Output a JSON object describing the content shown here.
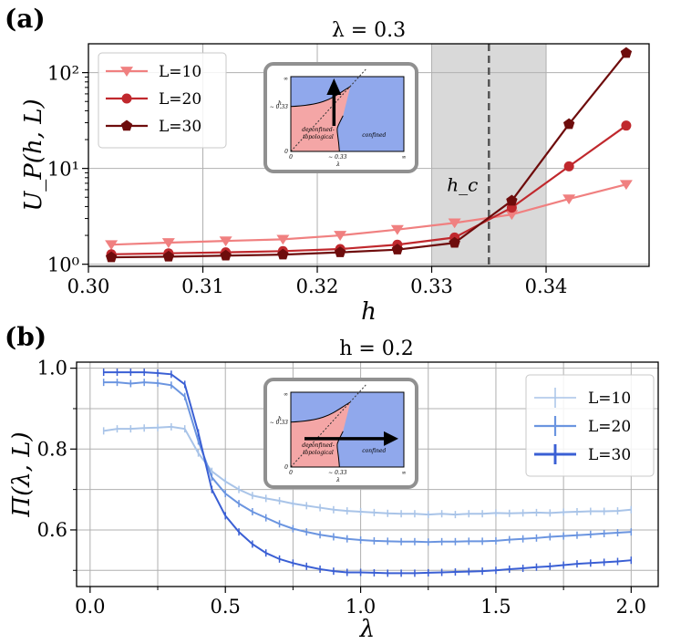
{
  "panel_labels": [
    "(a)",
    "(b)"
  ],
  "chart_data": [
    {
      "type": "line",
      "title": "λ = 0.3",
      "xlabel": "h",
      "ylabel": "U_P(h, L)",
      "x_ticks": [
        "0.30",
        "0.31",
        "0.32",
        "0.33",
        "0.34"
      ],
      "y_ticks": [
        "10⁰",
        "10¹",
        "10²"
      ],
      "xlim": [
        0.3,
        0.349
      ],
      "ylim": [
        0.95,
        200
      ],
      "yscale": "log",
      "grid": true,
      "legend": "top-left",
      "x": [
        0.302,
        0.307,
        0.312,
        0.317,
        0.322,
        0.327,
        0.332,
        0.337,
        0.342,
        0.347
      ],
      "series": [
        {
          "name": "L=10",
          "color": "#f08080",
          "marker": "triangle-down",
          "values": [
            1.6,
            1.68,
            1.75,
            1.82,
            2.0,
            2.3,
            2.7,
            3.3,
            4.8,
            6.8
          ]
        },
        {
          "name": "L=20",
          "color": "#c0282d",
          "marker": "circle",
          "values": [
            1.27,
            1.3,
            1.33,
            1.37,
            1.44,
            1.6,
            1.9,
            3.9,
            10.5,
            28
          ]
        },
        {
          "name": "L=30",
          "color": "#6e0c0c",
          "marker": "pentagon",
          "values": [
            1.18,
            1.2,
            1.23,
            1.26,
            1.33,
            1.42,
            1.67,
            4.6,
            29,
            160
          ]
        }
      ],
      "annotations": {
        "critical_label": "h_c",
        "h_c": 0.335,
        "shaded_region": [
          0.33,
          0.34
        ]
      },
      "inset": {
        "axis_y_label": "h",
        "axis_x_label": "λ",
        "y_tick": "∼ 0.33",
        "x_tick": "∼ 0.33",
        "top_tick": "∞",
        "right_tick": "∞",
        "left_zero": "0",
        "bottom_zero": "0",
        "region_left_1": "deconfined-",
        "region_left_2": "topological",
        "region_right": "confined",
        "color_left": "#f4a6a6",
        "color_right": "#90a8ec"
      }
    },
    {
      "type": "line",
      "title": "h = 0.2",
      "xlabel": "λ",
      "ylabel": "Π(λ, L)",
      "x_ticks": [
        "0.0",
        "0.5",
        "1.0",
        "1.5",
        "2.0"
      ],
      "y_ticks": [
        "0.6",
        "0.8",
        "1.0"
      ],
      "xlim": [
        -0.05,
        2.1
      ],
      "ylim": [
        0.46,
        1.015
      ],
      "grid": true,
      "legend": "top-right",
      "x": [
        0.05,
        0.1,
        0.15,
        0.2,
        0.25,
        0.3,
        0.35,
        0.4,
        0.45,
        0.5,
        0.55,
        0.6,
        0.65,
        0.7,
        0.75,
        0.8,
        0.85,
        0.9,
        0.95,
        1.0,
        1.05,
        1.1,
        1.15,
        1.2,
        1.25,
        1.3,
        1.35,
        1.4,
        1.45,
        1.5,
        1.55,
        1.6,
        1.65,
        1.7,
        1.75,
        1.8,
        1.85,
        1.9,
        1.95,
        2.0
      ],
      "series": [
        {
          "name": "L=10",
          "color": "#a9c4e8",
          "values": [
            0.845,
            0.85,
            0.85,
            0.852,
            0.853,
            0.855,
            0.85,
            0.79,
            0.745,
            0.72,
            0.7,
            0.685,
            0.678,
            0.672,
            0.665,
            0.66,
            0.655,
            0.65,
            0.647,
            0.645,
            0.643,
            0.641,
            0.64,
            0.64,
            0.638,
            0.64,
            0.638,
            0.64,
            0.64,
            0.642,
            0.641,
            0.642,
            0.643,
            0.642,
            0.644,
            0.645,
            0.646,
            0.646,
            0.647,
            0.65
          ]
        },
        {
          "name": "L=20",
          "color": "#6b95e0",
          "values": [
            0.965,
            0.965,
            0.962,
            0.965,
            0.963,
            0.958,
            0.93,
            0.82,
            0.73,
            0.69,
            0.665,
            0.645,
            0.63,
            0.615,
            0.603,
            0.595,
            0.588,
            0.583,
            0.578,
            0.575,
            0.573,
            0.572,
            0.571,
            0.571,
            0.57,
            0.571,
            0.571,
            0.572,
            0.572,
            0.573,
            0.576,
            0.578,
            0.58,
            0.583,
            0.585,
            0.587,
            0.589,
            0.591,
            0.593,
            0.595
          ]
        },
        {
          "name": "L=30",
          "color": "#3a5fd4",
          "values": [
            0.99,
            0.99,
            0.99,
            0.99,
            0.988,
            0.985,
            0.96,
            0.84,
            0.7,
            0.635,
            0.595,
            0.565,
            0.543,
            0.528,
            0.518,
            0.51,
            0.503,
            0.498,
            0.495,
            0.495,
            0.494,
            0.493,
            0.493,
            0.493,
            0.494,
            0.495,
            0.496,
            0.497,
            0.498,
            0.5,
            0.503,
            0.505,
            0.508,
            0.51,
            0.513,
            0.516,
            0.518,
            0.52,
            0.522,
            0.525
          ]
        }
      ],
      "inset": {
        "axis_y_label": "h",
        "axis_x_label": "λ",
        "y_tick": "∼ 0.33",
        "x_tick": "∼ 0.33",
        "top_tick": "∞",
        "right_tick": "∞",
        "left_zero": "0",
        "bottom_zero": "0",
        "region_left_1": "deconfined-",
        "region_left_2": "topological",
        "region_right": "confined",
        "color_left": "#f4a6a6",
        "color_right": "#90a8ec"
      }
    }
  ]
}
